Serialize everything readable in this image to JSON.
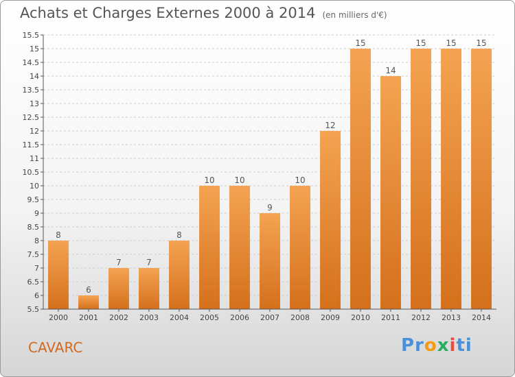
{
  "title": "Achats et Charges Externes 2000 à 2014",
  "unit": "(en milliers d'€)",
  "commune": "CAVARC",
  "brand": "Proxiti",
  "colors": {
    "bar_top": "#f4a352",
    "bar_bottom": "#d4701c",
    "axis": "#555555",
    "grid": "#cccccc"
  },
  "chart_data": {
    "type": "bar",
    "categories": [
      "2000",
      "2001",
      "2002",
      "2003",
      "2004",
      "2005",
      "2006",
      "2007",
      "2008",
      "2009",
      "2010",
      "2011",
      "2012",
      "2013",
      "2014"
    ],
    "values": [
      8,
      6,
      7,
      7,
      8,
      10,
      10,
      9,
      10,
      12,
      15,
      14,
      15,
      15,
      15
    ],
    "ylim": [
      5.5,
      15.5
    ],
    "yticks": [
      5.5,
      6,
      6.5,
      7,
      7.5,
      8,
      8.5,
      9,
      9.5,
      10,
      10.5,
      11,
      11.5,
      12,
      12.5,
      13,
      13.5,
      14,
      14.5,
      15,
      15.5
    ],
    "grid": true
  }
}
